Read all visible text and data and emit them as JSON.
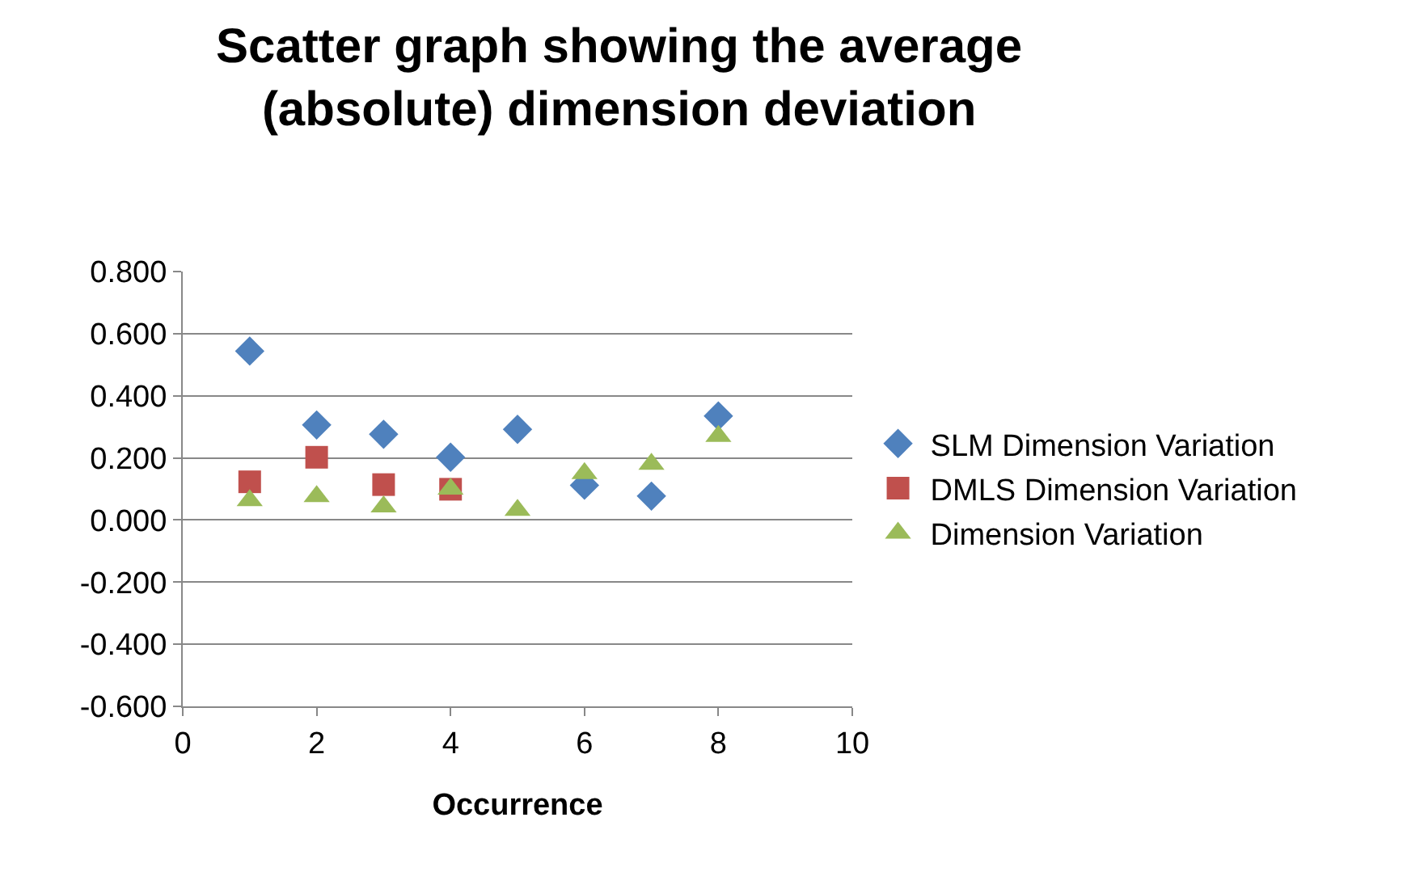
{
  "chart_data": {
    "type": "scatter",
    "title": "Scatter graph showing the average (absolute) dimension deviation",
    "xlabel": "Occurrence",
    "x": [
      1,
      2,
      3,
      4,
      5,
      6,
      7,
      8
    ],
    "series": [
      {
        "name": "SLM Dimension Variation",
        "color": "#4f81bd",
        "marker": "diamond",
        "values": [
          0.544,
          0.306,
          0.276,
          0.202,
          0.292,
          0.112,
          0.077,
          0.335
        ]
      },
      {
        "name": "DMLS Dimension Variation",
        "color": "#c0504d",
        "marker": "square",
        "x": [
          1,
          2,
          3,
          4
        ],
        "values": [
          0.123,
          0.202,
          0.114,
          0.099
        ]
      },
      {
        "name": "Dimension Variation",
        "color": "#9bbb59",
        "marker": "triangle",
        "values": [
          0.063,
          0.076,
          0.043,
          0.1,
          0.032,
          0.15,
          0.18,
          0.27
        ]
      }
    ],
    "xlim": [
      0,
      10
    ],
    "xticks": [
      0,
      2,
      4,
      6,
      8,
      10
    ],
    "ylim": [
      -0.6,
      0.8
    ],
    "yticks": [
      {
        "value": -0.6,
        "label": "-0.600"
      },
      {
        "value": -0.4,
        "label": "-0.400"
      },
      {
        "value": -0.2,
        "label": "-0.200"
      },
      {
        "value": 0,
        "label": "0.000"
      },
      {
        "value": 0.2,
        "label": "0.200"
      },
      {
        "value": 0.4,
        "label": "0.400"
      },
      {
        "value": 0.6,
        "label": "0.600"
      },
      {
        "value": 0.8,
        "label": "0.800"
      }
    ],
    "grid": "y",
    "legend": "right"
  }
}
